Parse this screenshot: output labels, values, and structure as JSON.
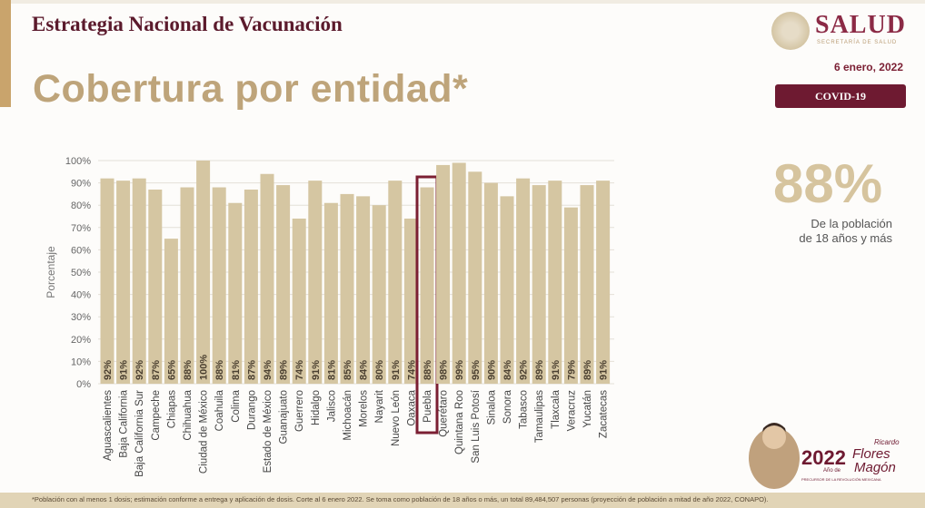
{
  "header": {
    "subtitle": "Estrategia Nacional de Vacunación",
    "title": "Cobertura por entidad*",
    "brand": "SALUD",
    "brand_sub": "SECRETARÍA DE SALUD",
    "date": "6 enero, 2022",
    "badge": "COVID-19"
  },
  "summary": {
    "value": "88%",
    "line1": "De la población",
    "line2": "de 18 años y más"
  },
  "logo_magon": {
    "year": "2022",
    "text": "Año de Ricardo Flores Magón",
    "sub": "PRECURSOR DE LA REVOLUCIÓN MEXICANA"
  },
  "footnote": "*Población con al menos 1 dosis; estimación conforme a entrega y aplicación de dosis. Corte al 6 enero 2022. Se toma como población de 18 años o más, un total 89,484,507 personas (proyección de población a mitad de año 2022, CONAPO).",
  "colors": {
    "bar": "#d5c6a2",
    "highlight": "#7b1f33",
    "accent": "#6e1a31"
  },
  "chart_data": {
    "type": "bar",
    "title": "",
    "xlabel": "",
    "ylabel": "Porcentaje",
    "ylim": [
      0,
      100
    ],
    "yticks": [
      "0%",
      "10%",
      "20%",
      "30%",
      "40%",
      "50%",
      "60%",
      "70%",
      "80%",
      "90%",
      "100%"
    ],
    "grid": true,
    "highlighted": "Puebla",
    "categories": [
      "Aguascalientes",
      "Baja California",
      "Baja California Sur",
      "Campeche",
      "Chiapas",
      "Chihuahua",
      "Ciudad de México",
      "Coahuila",
      "Colima",
      "Durango",
      "Estado de México",
      "Guanajuato",
      "Guerrero",
      "Hidalgo",
      "Jalisco",
      "Michoacán",
      "Morelos",
      "Nayarit",
      "Nuevo León",
      "Oaxaca",
      "Puebla",
      "Querétaro",
      "Quintana Roo",
      "San Luis Potosí",
      "Sinaloa",
      "Sonora",
      "Tabasco",
      "Tamaulipas",
      "Tlaxcala",
      "Veracruz",
      "Yucatán",
      "Zacatecas"
    ],
    "values": [
      92,
      91,
      92,
      87,
      65,
      88,
      100,
      88,
      81,
      87,
      94,
      89,
      74,
      91,
      81,
      85,
      84,
      80,
      91,
      74,
      88,
      98,
      99,
      95,
      90,
      84,
      92,
      89,
      91,
      79,
      89,
      91
    ],
    "labels": [
      "92%",
      "91%",
      "92%",
      "87%",
      "65%",
      "88%",
      "100%",
      "88%",
      "81%",
      "87%",
      "94%",
      "89%",
      "74%",
      "91%",
      "81%",
      "85%",
      "84%",
      "80%",
      "91%",
      "74%",
      "88%",
      "98%",
      "99%",
      "95%",
      "90%",
      "84%",
      "92%",
      "89%",
      "91%",
      "79%",
      "89%",
      "91%"
    ]
  }
}
